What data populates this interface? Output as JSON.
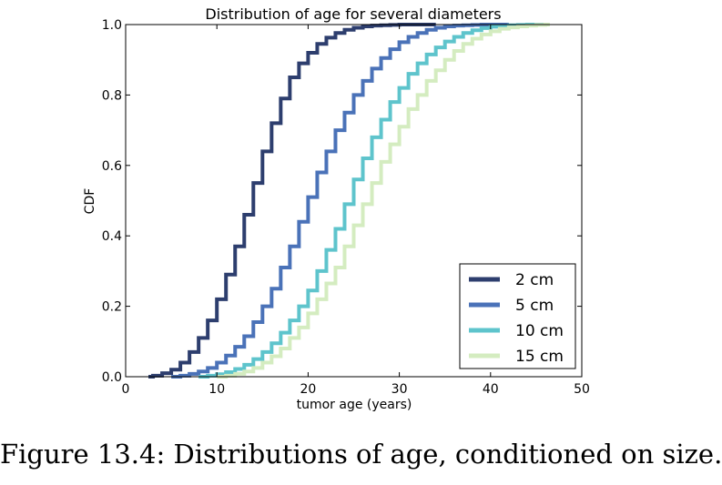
{
  "chart_data": {
    "type": "line",
    "drawstyle": "steps",
    "title": "Distribution of age for several diameters",
    "xlabel": "tumor age (years)",
    "ylabel": "CDF",
    "xlim": [
      0,
      50
    ],
    "ylim": [
      0.0,
      1.0
    ],
    "xticks": [
      0,
      10,
      20,
      30,
      40,
      50
    ],
    "yticks": [
      0.0,
      0.2,
      0.4,
      0.6,
      0.8,
      1.0
    ],
    "xtick_labels": [
      "0",
      "10",
      "20",
      "30",
      "40",
      "50"
    ],
    "ytick_labels": [
      "0.0",
      "0.2",
      "0.4",
      "0.6",
      "0.8",
      "1.0"
    ],
    "grid": false,
    "legend_position": "bottom-right",
    "series": [
      {
        "name": "2 cm",
        "color": "#2d3e6e",
        "x": [
          2.5,
          3,
          4,
          5,
          6,
          7,
          8,
          9,
          10,
          11,
          12,
          13,
          14,
          15,
          16,
          17,
          18,
          19,
          20,
          21,
          22,
          23,
          24,
          25,
          26,
          27,
          28,
          29,
          30,
          31,
          32,
          33,
          34
        ],
        "y": [
          0.0,
          0.003,
          0.01,
          0.02,
          0.04,
          0.07,
          0.11,
          0.16,
          0.22,
          0.29,
          0.37,
          0.46,
          0.55,
          0.64,
          0.72,
          0.79,
          0.85,
          0.89,
          0.92,
          0.945,
          0.963,
          0.976,
          0.985,
          0.991,
          0.995,
          0.997,
          0.998,
          0.999,
          1.0,
          1.0,
          1.0,
          1.0,
          1.0
        ]
      },
      {
        "name": "5 cm",
        "color": "#4a72b8",
        "x": [
          5,
          6,
          7,
          8,
          9,
          10,
          11,
          12,
          13,
          14,
          15,
          16,
          17,
          18,
          19,
          20,
          21,
          22,
          23,
          24,
          25,
          26,
          27,
          28,
          29,
          30,
          31,
          32,
          33,
          34,
          35,
          36,
          37,
          38,
          39,
          40,
          41,
          42
        ],
        "y": [
          0.0,
          0.003,
          0.008,
          0.015,
          0.025,
          0.04,
          0.06,
          0.085,
          0.115,
          0.155,
          0.2,
          0.25,
          0.31,
          0.37,
          0.44,
          0.51,
          0.58,
          0.64,
          0.7,
          0.75,
          0.8,
          0.84,
          0.875,
          0.905,
          0.93,
          0.95,
          0.965,
          0.976,
          0.985,
          0.991,
          0.995,
          0.997,
          0.998,
          0.999,
          1.0,
          1.0,
          1.0,
          1.0
        ]
      },
      {
        "name": "10 cm",
        "color": "#5ec4cc",
        "x": [
          8,
          9,
          10,
          11,
          12,
          13,
          14,
          15,
          16,
          17,
          18,
          19,
          20,
          21,
          22,
          23,
          24,
          25,
          26,
          27,
          28,
          29,
          30,
          31,
          32,
          33,
          34,
          35,
          36,
          37,
          38,
          39,
          40,
          41,
          42,
          43,
          44,
          45,
          46
        ],
        "y": [
          0.0,
          0.003,
          0.007,
          0.013,
          0.022,
          0.034,
          0.05,
          0.07,
          0.095,
          0.125,
          0.16,
          0.2,
          0.245,
          0.3,
          0.36,
          0.42,
          0.49,
          0.56,
          0.62,
          0.68,
          0.73,
          0.78,
          0.82,
          0.86,
          0.89,
          0.915,
          0.935,
          0.952,
          0.965,
          0.976,
          0.984,
          0.99,
          0.994,
          0.996,
          0.998,
          0.999,
          1.0,
          1.0,
          1.0
        ]
      },
      {
        "name": "15 cm",
        "color": "#d4ecc0",
        "x": [
          10,
          11,
          12,
          13,
          14,
          15,
          16,
          17,
          18,
          19,
          20,
          21,
          22,
          23,
          24,
          25,
          26,
          27,
          28,
          29,
          30,
          31,
          32,
          33,
          34,
          35,
          36,
          37,
          38,
          39,
          40,
          41,
          42,
          43,
          44,
          45,
          46,
          46.5
        ],
        "y": [
          0.0,
          0.003,
          0.008,
          0.015,
          0.025,
          0.04,
          0.058,
          0.08,
          0.11,
          0.14,
          0.18,
          0.22,
          0.265,
          0.31,
          0.37,
          0.43,
          0.49,
          0.55,
          0.61,
          0.66,
          0.71,
          0.76,
          0.8,
          0.84,
          0.87,
          0.9,
          0.925,
          0.945,
          0.96,
          0.972,
          0.981,
          0.988,
          0.992,
          0.995,
          0.997,
          0.999,
          1.0,
          1.0
        ]
      }
    ]
  },
  "caption": "Figure 13.4: Distributions of age, conditioned on size."
}
